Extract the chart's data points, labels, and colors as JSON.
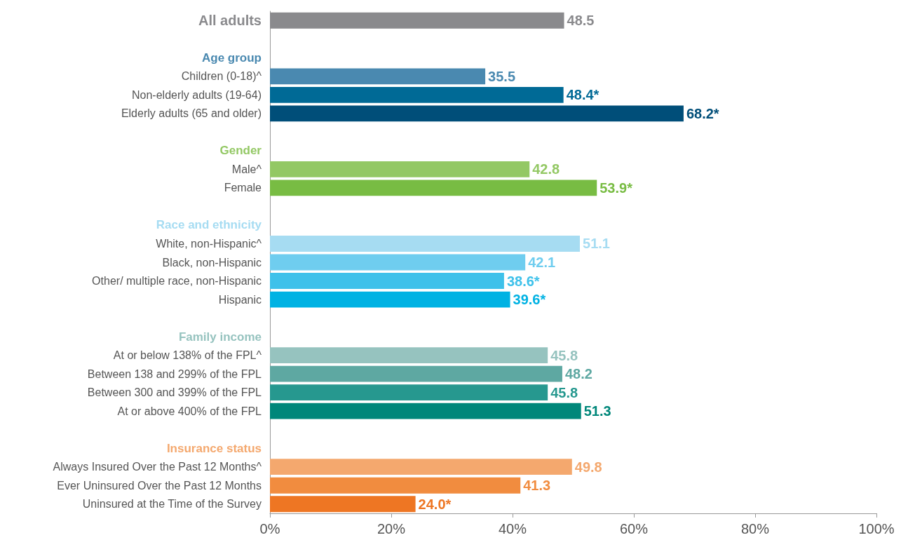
{
  "chart_data": {
    "type": "bar",
    "orientation": "horizontal",
    "categories": [
      "All adults",
      null,
      "Age group",
      "Children (0-18)^",
      "Non-elderly adults (19-64)",
      "Elderly adults (65 and older)",
      null,
      "Gender",
      "Male^",
      "Female",
      null,
      "Race and ethnicity",
      "White, non-Hispanic^",
      "Black, non-Hispanic",
      "Other/ multiple race, non-Hispanic",
      "Hispanic",
      null,
      "Family income",
      "At or below 138% of the FPL^",
      "Between 138 and 299% of the FPL",
      "Between 300 and 399% of the FPL",
      "At or above 400% of the FPL",
      null,
      "Insurance status",
      "Always Insured Over the Past 12 Months^",
      "Ever Uninsured Over the Past 12 Months",
      "Uninsured at the Time of the Survey"
    ],
    "values": [
      48.5,
      null,
      null,
      35.5,
      48.4,
      68.2,
      null,
      null,
      42.8,
      53.9,
      null,
      null,
      51.1,
      42.1,
      38.6,
      39.6,
      null,
      null,
      45.8,
      48.2,
      45.8,
      51.3,
      null,
      null,
      49.8,
      41.3,
      24.0
    ],
    "value_labels": [
      "48.5",
      null,
      null,
      "35.5",
      "48.4*",
      "68.2*",
      null,
      null,
      "42.8",
      "53.9*",
      null,
      null,
      "51.1",
      "42.1",
      "38.6*",
      "39.6*",
      null,
      null,
      "45.8",
      "48.2",
      "45.8",
      "51.3",
      null,
      null,
      "49.8",
      "41.3",
      "24.0*"
    ],
    "colors": [
      "#8a8a8d",
      null,
      null,
      "#4a89b0",
      "#006a96",
      "#004e79",
      null,
      null,
      "#93c864",
      "#78bc43",
      null,
      null,
      "#a6dcf2",
      "#6fcdef",
      "#3ec1ea",
      "#00b2e3",
      null,
      null,
      "#96c3bf",
      "#5ea8a2",
      "#26988f",
      "#00877a",
      null,
      null,
      "#f4a86e",
      "#f18c3f",
      "#ee7623"
    ],
    "xlim": [
      0,
      100
    ],
    "xticks": [
      {
        "value": 0,
        "label": "0%"
      },
      {
        "value": 20,
        "label": "20%"
      },
      {
        "value": 40,
        "label": "40%"
      },
      {
        "value": 60,
        "label": "60%"
      },
      {
        "value": 80,
        "label": "80%"
      },
      {
        "value": 100,
        "label": "100%"
      }
    ],
    "grid": false
  }
}
